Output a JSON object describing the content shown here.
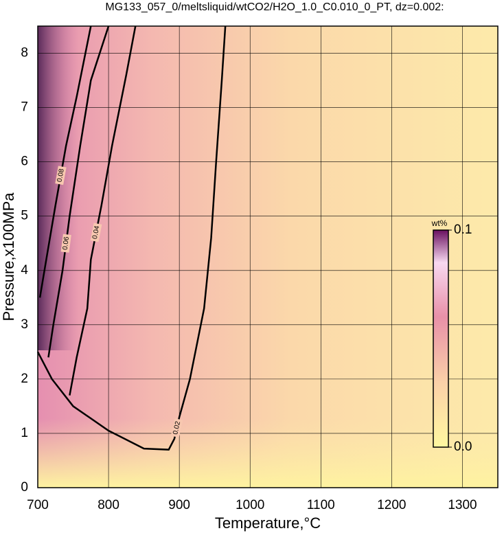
{
  "chart_data": {
    "type": "contour",
    "title": "MG133_057_0/meltsliquid/wtCO2/H2O_1.0_C0.010_0_PT, dz=0.002:",
    "x_label": "Temperature,°C",
    "y_label": "Pressure,x100MPa",
    "xlim": [
      700,
      1350
    ],
    "ylim": [
      0,
      8.5
    ],
    "xticks": [
      700,
      800,
      900,
      1000,
      1100,
      1200,
      1300
    ],
    "yticks": [
      0,
      1,
      2,
      3,
      4,
      5,
      6,
      7,
      8
    ],
    "grid": true,
    "line_color": "#000000",
    "contours": [
      {
        "level": 0.02,
        "x": [
          700,
          720,
          750,
          800,
          850,
          885,
          893,
          900,
          915,
          935,
          945,
          952,
          960,
          965
        ],
        "y": [
          2.5,
          2.0,
          1.5,
          1.05,
          0.72,
          0.7,
          0.9,
          1.3,
          2.0,
          3.3,
          4.6,
          6.0,
          7.5,
          8.5
        ]
      },
      {
        "level": 0.04,
        "x": [
          745,
          755,
          770,
          775,
          790,
          805,
          825,
          838
        ],
        "y": [
          1.7,
          2.4,
          3.3,
          4.2,
          5.2,
          6.3,
          7.6,
          8.5
        ]
      },
      {
        "level": 0.06,
        "x": [
          715,
          722,
          735,
          745,
          760,
          775,
          800
        ],
        "y": [
          2.4,
          3.0,
          4.0,
          5.0,
          6.3,
          7.5,
          8.5
        ]
      },
      {
        "level": 0.08,
        "x": [
          703,
          712,
          725,
          740,
          755,
          775
        ],
        "y": [
          3.5,
          4.2,
          5.2,
          6.3,
          7.2,
          8.5
        ]
      }
    ],
    "colorbar": {
      "label": "wt%",
      "lim": [
        0,
        0.1
      ],
      "ticks": [
        {
          "value": 0,
          "label": "0.0"
        },
        0.1
      ]
    }
  }
}
